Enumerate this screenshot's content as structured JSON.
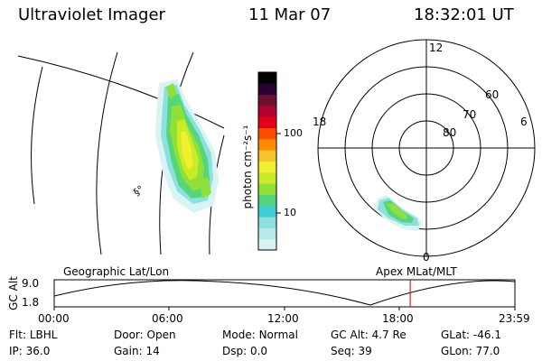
{
  "header": {
    "instrument": "Ultraviolet Imager",
    "date": "11 Mar 07",
    "time": "18:32:01 UT"
  },
  "colorbar": {
    "label": "photon cm⁻²s⁻¹",
    "scale": "log",
    "ticks": [
      "100",
      "10"
    ],
    "colors": [
      "#d8f3f3",
      "#b8eaea",
      "#8ee0e0",
      "#3ecfd6",
      "#56d67a",
      "#8fe13a",
      "#c9ec28",
      "#f0f030",
      "#f5c42a",
      "#ff8c00",
      "#ff4c00",
      "#e6001a",
      "#b30030",
      "#6d1030",
      "#2a0033",
      "#000000"
    ]
  },
  "geo_panel": {
    "label": "Geographic Lat/Lon",
    "marker": "§°"
  },
  "polar_panel": {
    "label": "Apex MLat/MLT",
    "mlt_labels": {
      "top": "12",
      "left": "18",
      "right": "6",
      "bottom": "0"
    },
    "lat_labels": [
      "60",
      "70",
      "80"
    ]
  },
  "altitude_plot": {
    "axis_label": "GC Alt",
    "y_ticks": [
      "9.0",
      "1.8"
    ],
    "x_ticks": [
      "00:00",
      "06:00",
      "12:00",
      "18:00",
      "23:59"
    ],
    "marker_time": "18:32",
    "marker_color": "#cc0000"
  },
  "status": {
    "row1": [
      {
        "label": "Flt:",
        "value": "LBHL"
      },
      {
        "label": "Door:",
        "value": "Open"
      },
      {
        "label": "Mode:",
        "value": "Normal"
      },
      {
        "label": "GC Alt:",
        "value": "4.7 Re"
      },
      {
        "label": "GLat:",
        "value": "-46.1"
      }
    ],
    "row2": [
      {
        "label": "IP:",
        "value": "36.0"
      },
      {
        "label": "Gain:",
        "value": "14"
      },
      {
        "label": "Dsp:",
        "value": "0.0"
      },
      {
        "label": "Seq:",
        "value": "39"
      },
      {
        "label": "GLon:",
        "value": "77.0"
      }
    ]
  }
}
